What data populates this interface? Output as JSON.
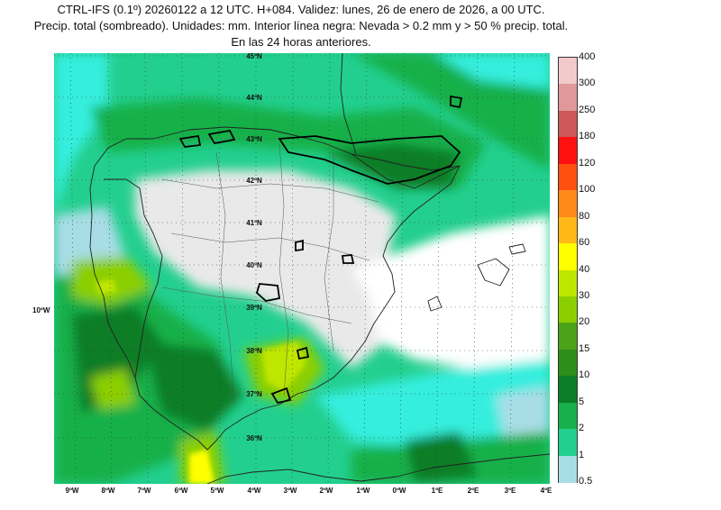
{
  "title": {
    "line1": "CTRL-IFS (0.1º) 20260122 a 12 UTC. H+084. Validez: lunes, 26 de enero de 2026, a 00 UTC.",
    "line2": "Precip. total (sombreado). Unidades: mm. Interior línea negra: Nevada > 0.2 mm y > 50 % precip. total.",
    "line3": "En las 24 horas anteriores."
  },
  "map": {
    "lat_labels": [
      "45ºN",
      "44ºN",
      "43ºN",
      "42ºN",
      "41ºN",
      "40ºN",
      "39ºN",
      "38ºN",
      "37ºN",
      "36ºN"
    ],
    "lon_labels": [
      "9ºW",
      "8ºW",
      "7ºW",
      "6ºW",
      "5ºW",
      "4ºW",
      "3ºW",
      "2ºW",
      "1ºW",
      "0ºW",
      "1ºE",
      "2ºE",
      "3ºE",
      "4ºE"
    ],
    "side_label": "10ºW"
  },
  "colorbar": {
    "labels": [
      "400",
      "300",
      "250",
      "180",
      "120",
      "100",
      "80",
      "60",
      "40",
      "30",
      "20",
      "15",
      "10",
      "5",
      "2",
      "1",
      "0.5"
    ],
    "colors": [
      "#f2caca",
      "#e09898",
      "#cc5858",
      "#ff1010",
      "#ff5010",
      "#ff8a1a",
      "#ffb818",
      "#ffff00",
      "#bfe600",
      "#8ccf00",
      "#4aa318",
      "#2d8e1a",
      "#0a7d28",
      "#18b04a",
      "#23cf8e",
      "#35eedd",
      "#a9dde6"
    ]
  }
}
